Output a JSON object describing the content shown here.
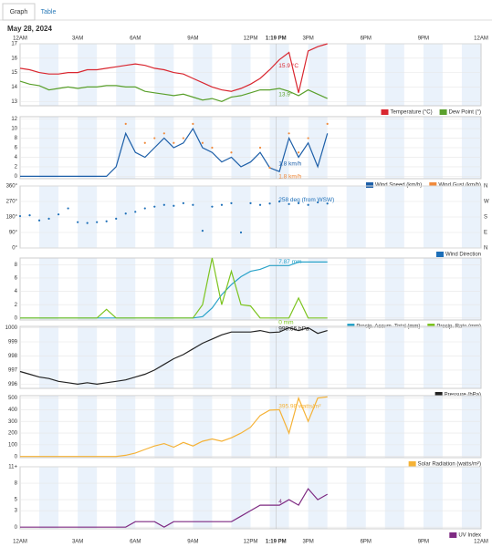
{
  "tabs": [
    "Graph",
    "Table"
  ],
  "date": "May 28, 2024",
  "x_axis": {
    "xlim": [
      0,
      24
    ],
    "xticks": [
      {
        "value": 0,
        "label": "12AM"
      },
      {
        "value": 3,
        "label": "3AM"
      },
      {
        "value": 6,
        "label": "6AM"
      },
      {
        "value": 9,
        "label": "9AM"
      },
      {
        "value": 12,
        "label": "12PM"
      },
      {
        "value": 15,
        "label": "3PM"
      },
      {
        "value": 18,
        "label": "6PM"
      },
      {
        "value": 21,
        "label": "9PM"
      },
      {
        "value": 24,
        "label": "12AM"
      }
    ],
    "current_time": {
      "value": 13.32,
      "label": "1:19 PM"
    }
  },
  "chart_data": [
    {
      "type": "line",
      "x": [
        0,
        0.5,
        1,
        1.5,
        2,
        2.5,
        3,
        3.5,
        4,
        4.5,
        5,
        5.5,
        6,
        6.5,
        7,
        7.5,
        8,
        8.5,
        9,
        9.5,
        10,
        10.5,
        11,
        11.5,
        12,
        12.5,
        13,
        13.5,
        14,
        14.5,
        15,
        15.5,
        16
      ],
      "ylim": [
        12.7,
        17
      ],
      "yticks": [
        13,
        14,
        15,
        16,
        17
      ],
      "series": [
        {
          "name": "Temperature (°C)",
          "color": "#d9262f",
          "annotation": "15.9 °C",
          "values": [
            15.3,
            15.2,
            15.0,
            14.9,
            14.9,
            15.0,
            15.0,
            15.2,
            15.2,
            15.3,
            15.4,
            15.5,
            15.6,
            15.5,
            15.3,
            15.2,
            15.0,
            14.9,
            14.6,
            14.3,
            14.0,
            13.8,
            13.7,
            13.9,
            14.2,
            14.6,
            15.2,
            15.9,
            16.4,
            13.6,
            16.5,
            16.8,
            17.0
          ]
        },
        {
          "name": "Dew Point (°)",
          "color": "#5aa02c",
          "annotation": "13.9°",
          "values": [
            14.4,
            14.2,
            14.1,
            13.8,
            13.9,
            14.0,
            13.9,
            14.0,
            14.0,
            14.1,
            14.1,
            14.0,
            14.0,
            13.7,
            13.6,
            13.5,
            13.4,
            13.5,
            13.3,
            13.1,
            13.2,
            13.0,
            13.3,
            13.4,
            13.6,
            13.8,
            13.8,
            13.9,
            13.7,
            13.4,
            13.8,
            13.5,
            13.2
          ]
        }
      ]
    },
    {
      "type": "line",
      "x": [
        0,
        0.5,
        1,
        1.5,
        2,
        2.5,
        3,
        3.5,
        4,
        4.5,
        5,
        5.5,
        6,
        6.5,
        7,
        7.5,
        8,
        8.5,
        9,
        9.5,
        10,
        10.5,
        11,
        11.5,
        12,
        12.5,
        13,
        13.5,
        14,
        14.5,
        15,
        15.5,
        16
      ],
      "ylim": [
        -0.5,
        12.5
      ],
      "yticks": [
        0,
        2,
        4,
        6,
        8,
        10,
        12
      ],
      "series": [
        {
          "name": "Wind Speed (km/h)",
          "color": "#1d5fa8",
          "annotation": "1.8 km/h",
          "values": [
            0,
            0,
            0,
            0,
            0,
            0,
            0,
            0,
            0,
            0,
            2,
            9,
            5,
            4,
            6,
            8,
            6,
            7,
            10,
            6,
            5,
            3,
            4,
            2,
            3,
            5,
            1.8,
            1,
            8,
            4,
            7,
            2,
            9
          ]
        },
        {
          "name": "Wind Gust (km/h)",
          "color": "#f08a3c",
          "type": "scatter",
          "annotation": "1.8 km/h",
          "values": [
            null,
            null,
            null,
            null,
            null,
            null,
            null,
            null,
            null,
            null,
            null,
            11,
            null,
            7,
            8,
            9,
            7,
            8,
            11,
            7,
            6,
            null,
            5,
            null,
            null,
            6,
            1.8,
            null,
            9,
            5,
            8,
            null,
            11
          ]
        }
      ]
    },
    {
      "type": "scatter",
      "x": [
        0,
        0.5,
        1,
        1.5,
        2,
        2.5,
        3,
        3.5,
        4,
        4.5,
        5,
        5.5,
        6,
        6.5,
        7,
        7.5,
        8,
        8.5,
        9,
        9.5,
        10,
        10.5,
        11,
        11.5,
        12,
        12.5,
        13,
        13.5,
        14,
        14.5,
        15,
        15.5,
        16
      ],
      "ylim": [
        0,
        360
      ],
      "yticks": [
        {
          "value": 0,
          "label": "0°"
        },
        {
          "value": 90,
          "label": "90°"
        },
        {
          "value": 180,
          "label": "180°"
        },
        {
          "value": 270,
          "label": "270°"
        },
        {
          "value": 360,
          "label": "360°"
        }
      ],
      "y2lim": [
        0,
        360
      ],
      "y2ticks": [
        {
          "value": 0,
          "label": "N"
        },
        {
          "value": 90,
          "label": "E"
        },
        {
          "value": 180,
          "label": "S"
        },
        {
          "value": 270,
          "label": "W"
        },
        {
          "value": 360,
          "label": "N"
        }
      ],
      "series": [
        {
          "name": "Wind Direction",
          "color": "#1d6fb8",
          "annotation": "258 deg (from WSW)",
          "values": [
            185,
            190,
            160,
            170,
            195,
            230,
            150,
            145,
            150,
            155,
            170,
            200,
            210,
            230,
            240,
            250,
            245,
            260,
            250,
            100,
            240,
            250,
            260,
            90,
            260,
            250,
            258,
            270,
            255,
            260,
            250,
            265,
            258
          ]
        }
      ]
    },
    {
      "type": "line",
      "x": [
        0,
        0.5,
        1,
        1.5,
        2,
        2.5,
        3,
        3.5,
        4,
        4.5,
        5,
        5.5,
        6,
        6.5,
        7,
        7.5,
        8,
        8.5,
        9,
        9.5,
        10,
        10.5,
        11,
        11.5,
        12,
        12.5,
        13,
        13.5,
        14,
        14.5,
        15,
        15.5,
        16
      ],
      "ylim": [
        -0.3,
        9
      ],
      "yticks": [
        0,
        2,
        4,
        6,
        8
      ],
      "series": [
        {
          "name": "Precip. Accum. Total (mm)",
          "color": "#2aa3c9",
          "annotation": "7.87 mm",
          "values": [
            0,
            0,
            0,
            0,
            0,
            0,
            0,
            0,
            0,
            0,
            0,
            0,
            0,
            0,
            0,
            0,
            0,
            0,
            0,
            0.2,
            1.5,
            3.5,
            5,
            6.2,
            7,
            7.3,
            7.87,
            7.87,
            7.87,
            8.4,
            8.4,
            8.4,
            8.4
          ]
        },
        {
          "name": "Precip. Rate (mm)",
          "color": "#7cc41f",
          "annotation": "0 mm",
          "values": [
            0,
            0,
            0,
            0,
            0,
            0,
            0,
            0,
            0,
            1.3,
            0,
            0,
            0,
            0,
            0,
            0,
            0,
            0,
            0,
            2,
            9,
            2,
            7,
            2,
            1.8,
            0,
            0,
            0,
            0,
            3,
            0,
            0,
            0
          ]
        }
      ]
    },
    {
      "type": "line",
      "x": [
        0,
        0.5,
        1,
        1.5,
        2,
        2.5,
        3,
        3.5,
        4,
        4.5,
        5,
        5.5,
        6,
        6.5,
        7,
        7.5,
        8,
        8.5,
        9,
        9.5,
        10,
        10.5,
        11,
        11.5,
        12,
        12.5,
        13,
        13.5,
        14,
        14.5,
        15,
        15.5,
        16
      ],
      "ylim": [
        995.7,
        1000.1
      ],
      "yticks": [
        996,
        997,
        998,
        999,
        1000
      ],
      "series": [
        {
          "name": "Pressure (hPa)",
          "color": "#222222",
          "annotation": "999.66 hPa",
          "values": [
            996.9,
            996.7,
            996.5,
            996.4,
            996.2,
            996.1,
            996.0,
            996.1,
            996.0,
            996.1,
            996.2,
            996.3,
            996.5,
            996.7,
            997.0,
            997.4,
            997.8,
            998.1,
            998.5,
            998.9,
            999.2,
            999.5,
            999.7,
            999.7,
            999.7,
            999.8,
            999.66,
            999.7,
            1000,
            999.8,
            1000,
            999.6,
            999.8
          ]
        }
      ]
    },
    {
      "type": "line",
      "x": [
        0,
        0.5,
        1,
        1.5,
        2,
        2.5,
        3,
        3.5,
        4,
        4.5,
        5,
        5.5,
        6,
        6.5,
        7,
        7.5,
        8,
        8.5,
        9,
        9.5,
        10,
        10.5,
        11,
        11.5,
        12,
        12.5,
        13,
        13.5,
        14,
        14.5,
        15,
        15.5,
        16
      ],
      "ylim": [
        -10,
        520
      ],
      "yticks": [
        0,
        100,
        200,
        300,
        400,
        500
      ],
      "series": [
        {
          "name": "Solar Radiation (watts/m²)",
          "color": "#f5b236",
          "annotation": "395.98 watts/m²",
          "values": [
            0,
            0,
            0,
            0,
            0,
            0,
            0,
            0,
            0,
            0,
            0,
            10,
            30,
            60,
            90,
            110,
            80,
            120,
            90,
            130,
            150,
            130,
            160,
            200,
            250,
            350,
            396,
            400,
            200,
            500,
            300,
            500,
            510
          ]
        }
      ]
    },
    {
      "type": "line",
      "x": [
        0,
        0.5,
        1,
        1.5,
        2,
        2.5,
        3,
        3.5,
        4,
        4.5,
        5,
        5.5,
        6,
        6.5,
        7,
        7.5,
        8,
        8.5,
        9,
        9.5,
        10,
        10.5,
        11,
        11.5,
        12,
        12.5,
        13,
        13.5,
        14,
        14.5,
        15,
        15.5,
        16
      ],
      "ylim": [
        -0.3,
        11
      ],
      "yticks": [
        0,
        3,
        5,
        8,
        {
          "value": 11,
          "label": "11+"
        }
      ],
      "series": [
        {
          "name": "UV Index",
          "color": "#7e2a82",
          "annotation": "4",
          "values": [
            0,
            0,
            0,
            0,
            0,
            0,
            0,
            0,
            0,
            0,
            0,
            0,
            1,
            1,
            1,
            0,
            1,
            1,
            1,
            1,
            1,
            1,
            1,
            2,
            3,
            4,
            4,
            4,
            5,
            4,
            7,
            5,
            6
          ]
        }
      ]
    }
  ]
}
